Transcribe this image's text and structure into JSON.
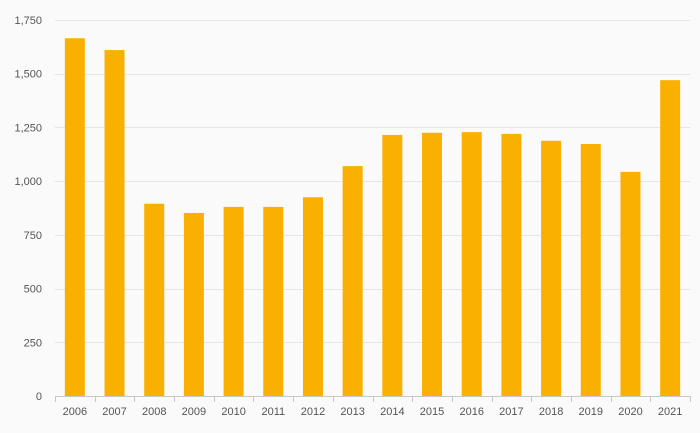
{
  "colors": {
    "bar": "#f9b000",
    "grid": "#e6e6e6",
    "axis": "#c8c8c8",
    "background": "#fafafa",
    "label": "#555555"
  },
  "chart_data": {
    "type": "bar",
    "title": "",
    "xlabel": "",
    "ylabel": "",
    "categories": [
      "2006",
      "2007",
      "2008",
      "2009",
      "2010",
      "2011",
      "2012",
      "2013",
      "2014",
      "2015",
      "2016",
      "2017",
      "2018",
      "2019",
      "2020",
      "2021"
    ],
    "values": [
      1665,
      1610,
      895,
      852,
      880,
      880,
      925,
      1070,
      1215,
      1225,
      1228,
      1220,
      1188,
      1173,
      1043,
      1470
    ],
    "ylim": [
      0,
      1750
    ],
    "yticks": [
      0,
      250,
      500,
      750,
      1000,
      1250,
      1500,
      1750
    ],
    "ytick_labels": [
      "0",
      "250",
      "500",
      "750",
      "1,000",
      "1,250",
      "1,500",
      "1,750"
    ],
    "grid": true,
    "legend": "none"
  }
}
